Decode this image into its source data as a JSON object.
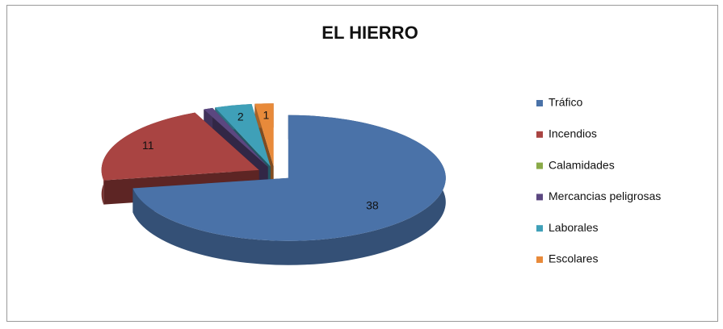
{
  "chart_data": {
    "type": "pie",
    "title": "EL HIERRO",
    "categories": [
      "Tráfico",
      "Incendios",
      "Calamidades",
      "Mercancias peligrosas",
      "Laborales",
      "Escolares"
    ],
    "values": [
      38,
      11,
      0,
      0.5,
      2,
      1
    ],
    "value_labels": [
      "38",
      "11",
      null,
      null,
      "2",
      "1"
    ],
    "colors": [
      "#4a72a8",
      "#a94442",
      "#8aaa48",
      "#5b4780",
      "#3fa0b8",
      "#e88a3a"
    ],
    "legend": "right"
  }
}
